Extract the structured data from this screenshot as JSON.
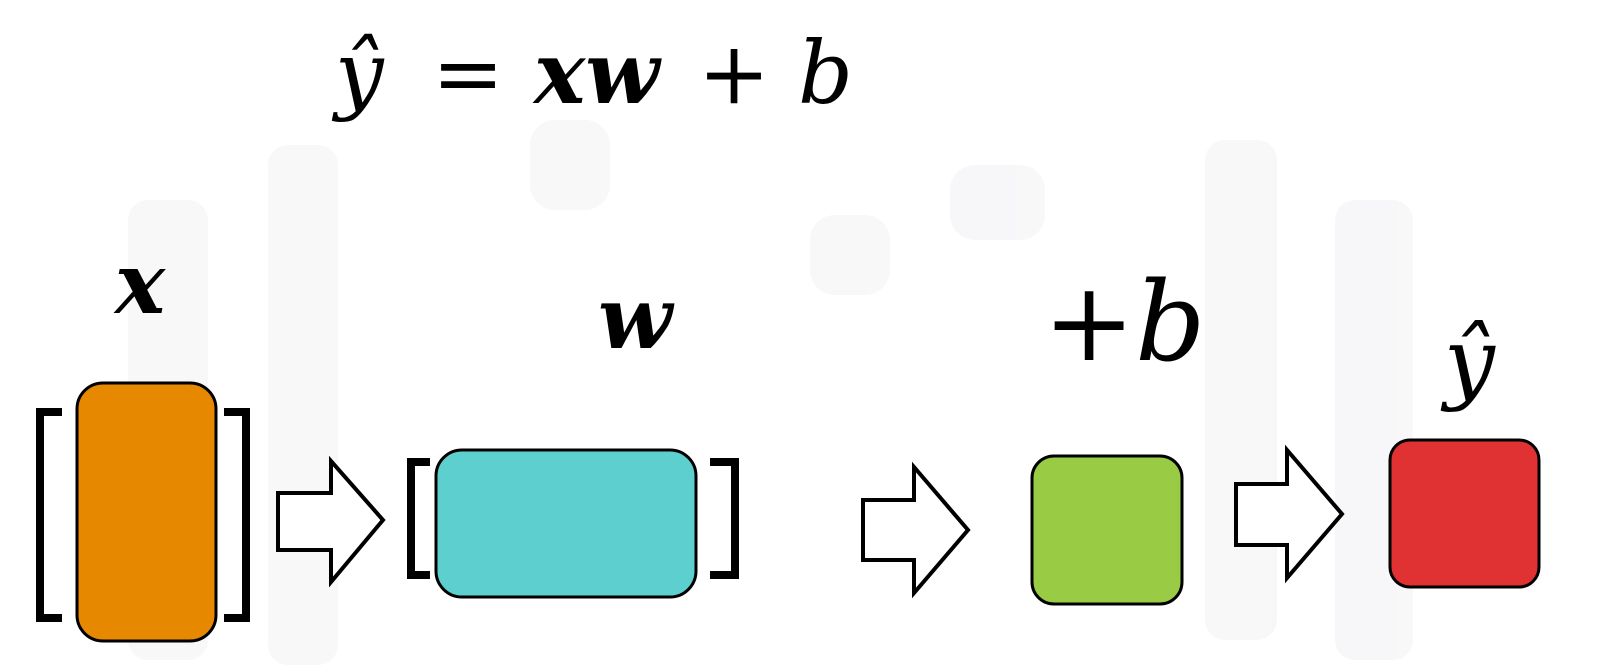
{
  "equation": {
    "y_hat": "ŷ",
    "equals": "=",
    "xw": "xw",
    "plus": "+",
    "b": "b"
  },
  "labels": {
    "x": "x",
    "w": "w",
    "plus_b": "+b",
    "y_hat": "ŷ"
  },
  "colors": {
    "x_block": "#E68800",
    "w_block": "#5ECFCF",
    "b_block": "#9ACB45",
    "y_block": "#E03232",
    "stroke": "#000000"
  },
  "icons": {
    "arrow": "hollow-right-arrow",
    "bracket": "square-bracket"
  }
}
